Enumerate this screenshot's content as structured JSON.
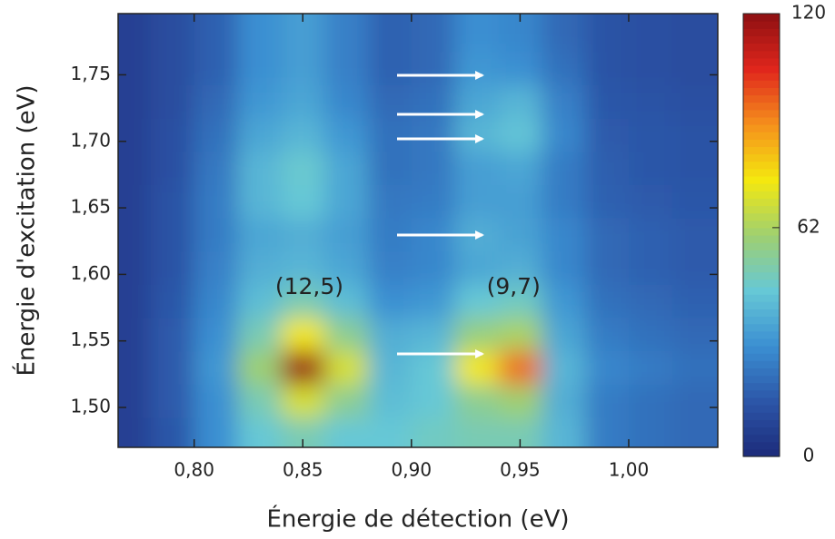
{
  "chart_data": {
    "type": "heatmap",
    "xlabel": "Énergie de détection (eV)",
    "ylabel": "Énergie d'excitation (eV)",
    "xlim": [
      0.765,
      1.041
    ],
    "ylim": [
      1.47,
      1.796
    ],
    "xticks": [
      {
        "value": 0.8,
        "label": "0,80"
      },
      {
        "value": 0.85,
        "label": "0,85"
      },
      {
        "value": 0.9,
        "label": "0,90"
      },
      {
        "value": 0.95,
        "label": "0,95"
      },
      {
        "value": 1.0,
        "label": "1,00"
      }
    ],
    "yticks": [
      {
        "value": 1.5,
        "label": "1,50"
      },
      {
        "value": 1.55,
        "label": "1,55"
      },
      {
        "value": 1.6,
        "label": "1,60"
      },
      {
        "value": 1.65,
        "label": "1,65"
      },
      {
        "value": 1.7,
        "label": "1,70"
      },
      {
        "value": 1.75,
        "label": "1,75"
      }
    ],
    "x": [
      0.77,
      0.79,
      0.81,
      0.83,
      0.85,
      0.87,
      0.89,
      0.91,
      0.93,
      0.95,
      0.97,
      0.99,
      1.01,
      1.03
    ],
    "y": [
      1.48,
      1.505,
      1.53,
      1.555,
      1.58,
      1.605,
      1.63,
      1.655,
      1.68,
      1.705,
      1.73,
      1.755,
      1.78
    ],
    "z": [
      [
        8,
        15,
        30,
        45,
        50,
        45,
        45,
        48,
        50,
        50,
        40,
        25,
        22,
        20
      ],
      [
        8,
        16,
        30,
        50,
        70,
        55,
        42,
        45,
        55,
        60,
        38,
        25,
        22,
        20
      ],
      [
        8,
        16,
        32,
        60,
        118,
        70,
        40,
        45,
        75,
        95,
        40,
        28,
        25,
        22
      ],
      [
        8,
        16,
        30,
        50,
        75,
        55,
        38,
        40,
        58,
        62,
        36,
        25,
        22,
        20
      ],
      [
        8,
        15,
        28,
        42,
        50,
        42,
        30,
        32,
        45,
        48,
        32,
        22,
        20,
        18
      ],
      [
        8,
        14,
        26,
        38,
        40,
        36,
        26,
        28,
        36,
        38,
        28,
        20,
        18,
        16
      ],
      [
        8,
        14,
        25,
        36,
        38,
        34,
        25,
        28,
        38,
        35,
        28,
        20,
        18,
        16
      ],
      [
        8,
        14,
        25,
        40,
        45,
        36,
        24,
        25,
        34,
        34,
        25,
        18,
        16,
        15
      ],
      [
        8,
        13,
        24,
        40,
        46,
        36,
        22,
        24,
        34,
        36,
        25,
        17,
        15,
        14
      ],
      [
        8,
        13,
        22,
        36,
        40,
        32,
        22,
        24,
        40,
        44,
        28,
        16,
        15,
        14
      ],
      [
        8,
        12,
        20,
        32,
        36,
        28,
        20,
        22,
        36,
        40,
        26,
        15,
        14,
        13
      ],
      [
        8,
        12,
        18,
        30,
        34,
        26,
        18,
        20,
        32,
        30,
        22,
        14,
        13,
        12
      ],
      [
        8,
        12,
        18,
        30,
        34,
        26,
        18,
        20,
        30,
        28,
        20,
        14,
        13,
        12
      ]
    ],
    "colormap": [
      "#1c2a7a",
      "#2c56a8",
      "#3b8fd2",
      "#66c8d6",
      "#9fd070",
      "#f4e80f",
      "#f5901c",
      "#e0261c",
      "#8e0f12"
    ],
    "colorbar": {
      "lim": [
        0,
        120
      ],
      "ticks": [
        0,
        62,
        120
      ]
    },
    "annotations": [
      {
        "text": "(12,5)",
        "x": 0.853,
        "y": 1.59
      },
      {
        "text": "(9,7)",
        "x": 0.947,
        "y": 1.59
      }
    ]
  }
}
